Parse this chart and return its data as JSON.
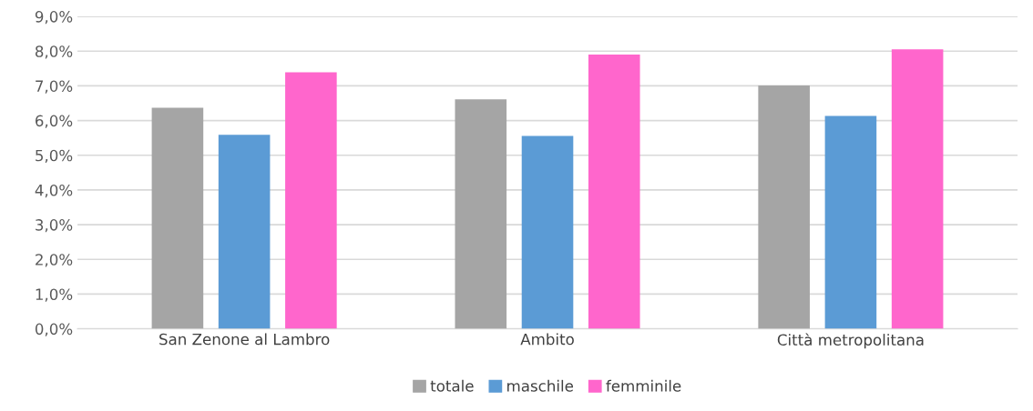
{
  "chart_data": {
    "type": "bar",
    "categories": [
      "San Zenone al Lambro",
      "Ambito",
      "Città metropolitana"
    ],
    "series": [
      {
        "name": "totale",
        "color": "#a5a5a5",
        "values": [
          6.37,
          6.61,
          7.01
        ]
      },
      {
        "name": "maschile",
        "color": "#5b9bd5",
        "values": [
          5.59,
          5.56,
          6.13
        ]
      },
      {
        "name": "femminile",
        "color": "#ff66cc",
        "values": [
          7.39,
          7.9,
          8.05
        ]
      }
    ],
    "ylim": [
      0,
      9
    ],
    "yticks": [
      {
        "value": 0,
        "label": "0,0%"
      },
      {
        "value": 1,
        "label": "1,0%"
      },
      {
        "value": 2,
        "label": "2,0%"
      },
      {
        "value": 3,
        "label": "3,0%"
      },
      {
        "value": 4,
        "label": "4,0%"
      },
      {
        "value": 5,
        "label": "5,0%"
      },
      {
        "value": 6,
        "label": "6,0%"
      },
      {
        "value": 7,
        "label": "7,0%"
      },
      {
        "value": 8,
        "label": "8,0%"
      },
      {
        "value": 9,
        "label": "9,0%"
      }
    ],
    "grid": "y",
    "legend": "bottom"
  }
}
